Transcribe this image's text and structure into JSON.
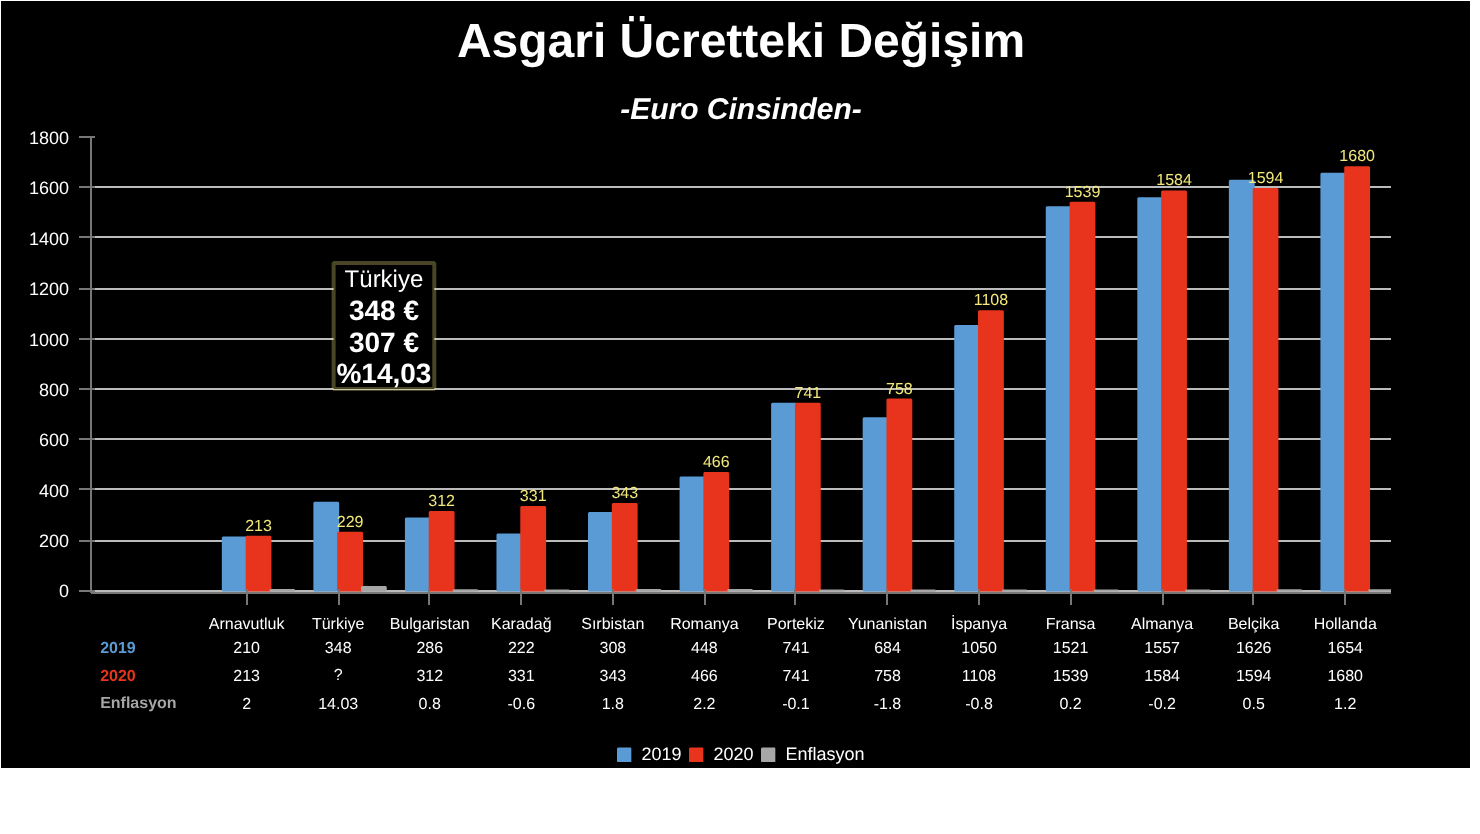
{
  "chart_data": {
    "type": "bar",
    "title": "Asgari Ücretteki Değişim",
    "subtitle": "-Euro Cinsinden-",
    "categories": [
      "Arnavutluk",
      "Türkiye",
      "Bulgaristan",
      "Karadağ",
      "Sırbistan",
      "Romanya",
      "Portekiz",
      "Yunanistan",
      "İspanya",
      "Fransa",
      "Almanya",
      "Belçika",
      "Hollanda"
    ],
    "series": [
      {
        "name": "2019",
        "color": "#5b9bd5",
        "values": [
          210,
          348,
          286,
          222,
          308,
          448,
          741,
          684,
          1050,
          1521,
          1557,
          1626,
          1654
        ],
        "value_labels": [
          "210",
          "348",
          "286",
          "222",
          "308",
          "448",
          "741",
          "684",
          "1050",
          "1521",
          "1557",
          "1626",
          "1654"
        ]
      },
      {
        "name": "2020",
        "color": "#e8341c",
        "values": [
          213,
          229,
          312,
          331,
          343,
          466,
          741,
          758,
          1108,
          1539,
          1584,
          1594,
          1680
        ],
        "value_labels": [
          "213",
          "?",
          "312",
          "331",
          "343",
          "466",
          "741",
          "758",
          "1108",
          "1539",
          "1584",
          "1594",
          "1680"
        ]
      },
      {
        "name": "Enflasyon",
        "color": "#a6a6a6",
        "values": [
          2,
          14.03,
          0.8,
          -0.6,
          1.8,
          2.2,
          -0.1,
          -1.8,
          -0.8,
          0.2,
          -0.2,
          0.5,
          1.2
        ],
        "value_labels": [
          "2",
          "14.03",
          "0.8",
          "-0.6",
          "1.8",
          "2.2",
          "-0.1",
          "-1.8",
          "-0.8",
          "0.2",
          "-0.2",
          "0.5",
          "1.2"
        ]
      }
    ],
    "ylim": [
      -10,
      1800
    ],
    "yticks": [
      0,
      200,
      400,
      600,
      800,
      1000,
      1200,
      1400,
      1600,
      1800
    ],
    "grid": "y",
    "legend": "bottom",
    "annotations": [
      {
        "text": "213",
        "x": "Arnavutluk",
        "y": 213
      },
      {
        "text": "229",
        "x": "Türkiye",
        "y": 229
      },
      {
        "text": "312",
        "x": "Bulgaristan",
        "y": 312
      },
      {
        "text": "331",
        "x": "Karadağ",
        "y": 331
      },
      {
        "text": "343",
        "x": "Sırbistan",
        "y": 343
      },
      {
        "text": "466",
        "x": "Romanya",
        "y": 466
      },
      {
        "text": "741",
        "x": "Portekiz",
        "y": 741
      },
      {
        "text": "758",
        "x": "Yunanistan",
        "y": 758
      },
      {
        "text": "1108",
        "x": "İspanya",
        "y": 1108
      },
      {
        "text": "1539",
        "x": "Fransa",
        "y": 1539
      },
      {
        "text": "1584",
        "x": "Almanya",
        "y": 1584
      },
      {
        "text": "1594",
        "x": "Belçika",
        "y": 1594
      },
      {
        "text": "1680",
        "x": "Hollanda",
        "y": 1680
      },
      "Türkiye",
      "348 €",
      "307 €",
      "%14,03"
    ]
  }
}
